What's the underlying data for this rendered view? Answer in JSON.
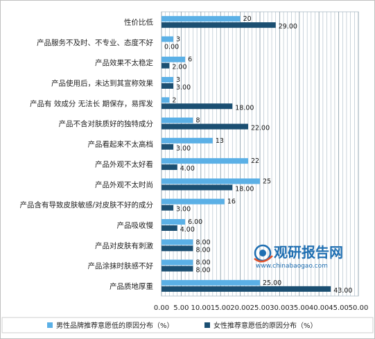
{
  "chart_data": {
    "type": "bar",
    "orientation": "horizontal",
    "categories": [
      "性价比低",
      "产品服务不及时、不专业、态度不好",
      "产品效果不太稳定",
      "产品使用后，未达到其宣称效果",
      "产品有 效成分 无法长 期保存，易挥发",
      "产品不含对肤质好的独特成分",
      "产品看起来不太高档",
      "产品外观不太好看",
      "产品外观不太时尚",
      "产品含有导致皮肤敏感/对皮肤不好的成分",
      "产品吸收慢",
      "产品对皮肤有刺激",
      "产品涂抹时肤感不好",
      "产品质地厚重"
    ],
    "series": [
      {
        "name": "男性品牌推荐意愿低的原因分布（%）",
        "color": "#5bb0e6",
        "values": [
          20,
          3,
          6,
          3,
          2,
          8,
          13,
          22,
          25,
          16,
          6,
          8,
          8,
          25
        ],
        "labels": [
          "20",
          "3",
          "6",
          "3",
          "2",
          "8",
          "13",
          "22",
          "25",
          "16",
          "6.00",
          "8.00",
          "8.00",
          "25.00"
        ]
      },
      {
        "name": "女性推荐意愿低的原因分布（%）",
        "color": "#1b4f72",
        "values": [
          29,
          0,
          2,
          3,
          18,
          22,
          3,
          4,
          18,
          3,
          4,
          8,
          8,
          43
        ],
        "labels": [
          "29.00",
          "0.00",
          "2.00",
          "3.00",
          "18.00",
          "22.00",
          "3.00",
          "4.00",
          "18.00",
          "3.00",
          "4.00",
          "8.00",
          "8.00",
          "43.00"
        ]
      }
    ],
    "xlim": [
      0,
      50
    ],
    "xticks": [
      "0.00",
      "5.00",
      "10.00",
      "15.00",
      "20.00",
      "25.00",
      "30.00",
      "35.00",
      "40.00",
      "45.00",
      "50.00"
    ],
    "grid": true,
    "legend_position": "bottom"
  },
  "watermark": {
    "brand": "观研报告网",
    "url": "www.chinabaogao.com"
  },
  "colors": {
    "male": "#5bb0e6",
    "female": "#1b4f72",
    "grid": "#a8b8c4"
  }
}
